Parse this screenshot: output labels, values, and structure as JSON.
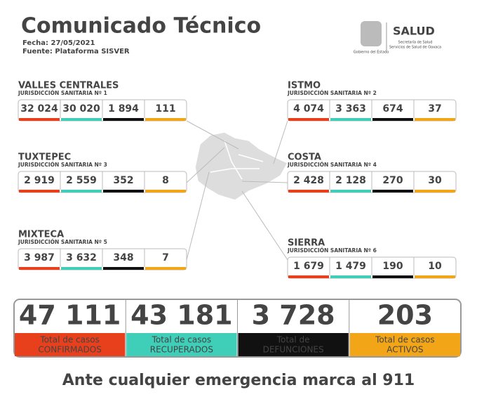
{
  "header": {
    "title": "Comunicado Técnico",
    "date": "Fecha: 27/05/2021",
    "source": "Fuente: Plataforma SISVER",
    "logo": {
      "name": "SALUD",
      "line1": "Secretaría de Salud",
      "line2": "Servicios de Salud de Oaxaca",
      "government": "Gobierno del Estado"
    }
  },
  "regions": [
    {
      "name": "VALLES CENTRALES",
      "jurisdiction": "JURISDICCIÓN SANITARIA Nº 1",
      "values": [
        "32 024",
        "30 020",
        "1 894",
        "111"
      ]
    },
    {
      "name": "ISTMO",
      "jurisdiction": "JURISDICCIÓN SANITARIA Nº 2",
      "values": [
        "4 074",
        "3 363",
        "674",
        "37"
      ]
    },
    {
      "name": "TUXTEPEC",
      "jurisdiction": "JURISDICCIÓN SANITARIA Nº 3",
      "values": [
        "2 919",
        "2 559",
        "352",
        "8"
      ]
    },
    {
      "name": "COSTA",
      "jurisdiction": "JURISDICCIÓN SANITARIA Nº 4",
      "values": [
        "2 428",
        "2 128",
        "270",
        "30"
      ]
    },
    {
      "name": "MIXTECA",
      "jurisdiction": "JURISDICCIÓN SANITARIA Nº 5",
      "values": [
        "3 987",
        "3 632",
        "348",
        "7"
      ]
    },
    {
      "name": "SIERRA",
      "jurisdiction": "JURISDICCIÓN SANITARIA Nº 6",
      "values": [
        "1 679",
        "1 479",
        "190",
        "10"
      ]
    }
  ],
  "totals": [
    {
      "value": "47 111",
      "label1": "Total de casos",
      "label2": "CONFIRMADOS"
    },
    {
      "value": "43 181",
      "label1": "Total de casos",
      "label2": "RECUPERADOS"
    },
    {
      "value": "3 728",
      "label1": "Total de",
      "label2": "DEFUNCIONES"
    },
    {
      "value": "203",
      "label1": "Total de casos",
      "label2": "ACTIVOS"
    }
  ],
  "footer": "Ante cualquier emergencia marca al 911"
}
